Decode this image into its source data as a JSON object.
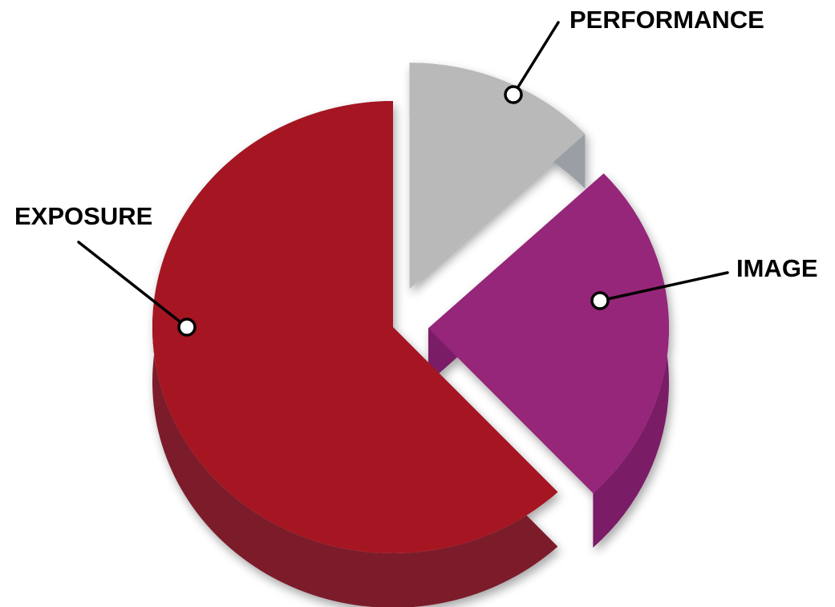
{
  "chart_data": {
    "type": "pie",
    "style": "3d-exploded",
    "title": "",
    "series": [
      {
        "label": "EXPOSURE",
        "value": 62,
        "color_top": "#a51923",
        "color_side": "#7c1f2c"
      },
      {
        "label": "IMAGE",
        "value": 25,
        "color_top": "#96257a",
        "color_side": "#7a1d66"
      },
      {
        "label": "PERFORMANCE",
        "value": 13,
        "color_top": "#b9b9b9",
        "color_side": "#9a9fa6"
      }
    ]
  }
}
